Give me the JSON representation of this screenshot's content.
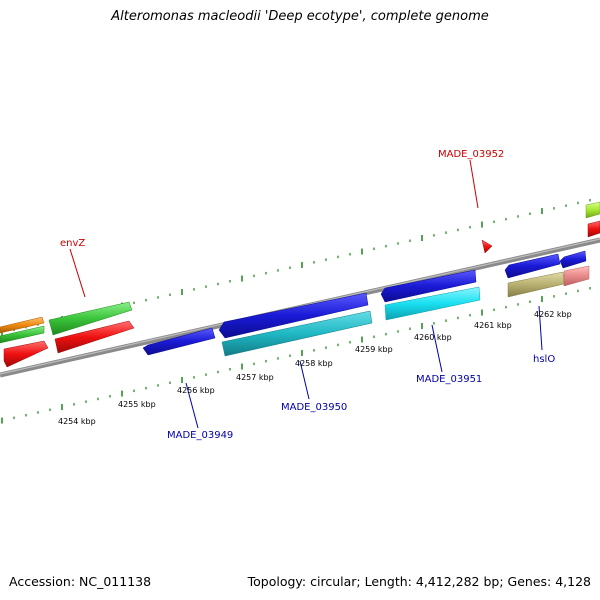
{
  "title": "Alteromonas macleodii 'Deep ecotype', complete genome",
  "footer": {
    "accession": "Accession: NC_011138",
    "summary": "Topology: circular; Length: 4,412,282 bp; Genes: 4,128"
  },
  "ruler": {
    "unit": "kbp",
    "ticks": [
      {
        "label": "4254 kbp",
        "kbp": 4254
      },
      {
        "label": "4255 kbp",
        "kbp": 4255
      },
      {
        "label": "4256 kbp",
        "kbp": 4256
      },
      {
        "label": "4257 kbp",
        "kbp": 4257
      },
      {
        "label": "4258 kbp",
        "kbp": 4258
      },
      {
        "label": "4259 kbp",
        "kbp": 4259
      },
      {
        "label": "4260 kbp",
        "kbp": 4260
      },
      {
        "label": "4261 kbp",
        "kbp": 4261
      },
      {
        "label": "4262 kbp",
        "kbp": 4262
      }
    ]
  },
  "gene_labels": [
    {
      "name": "envZ",
      "color": "#cc0000"
    },
    {
      "name": "MADE_03952",
      "color": "#cc0000"
    },
    {
      "name": "MADE_03949",
      "color": "#0000aa"
    },
    {
      "name": "MADE_03950",
      "color": "#0000aa"
    },
    {
      "name": "MADE_03951",
      "color": "#0000aa"
    },
    {
      "name": "hslO",
      "color": "#0000aa"
    }
  ],
  "colors": {
    "backbone": "#8a8a8a",
    "tick_green": "#2a8a2a",
    "blue": "#1a1ad6",
    "cyan": "#19e0f0",
    "teal": "#1fb8c4",
    "green": "#3bc43b",
    "lime": "#a6e832",
    "orange": "#f08a10",
    "red": "#f01010",
    "olive": "#b8b070",
    "pink": "#ea8a8a"
  }
}
